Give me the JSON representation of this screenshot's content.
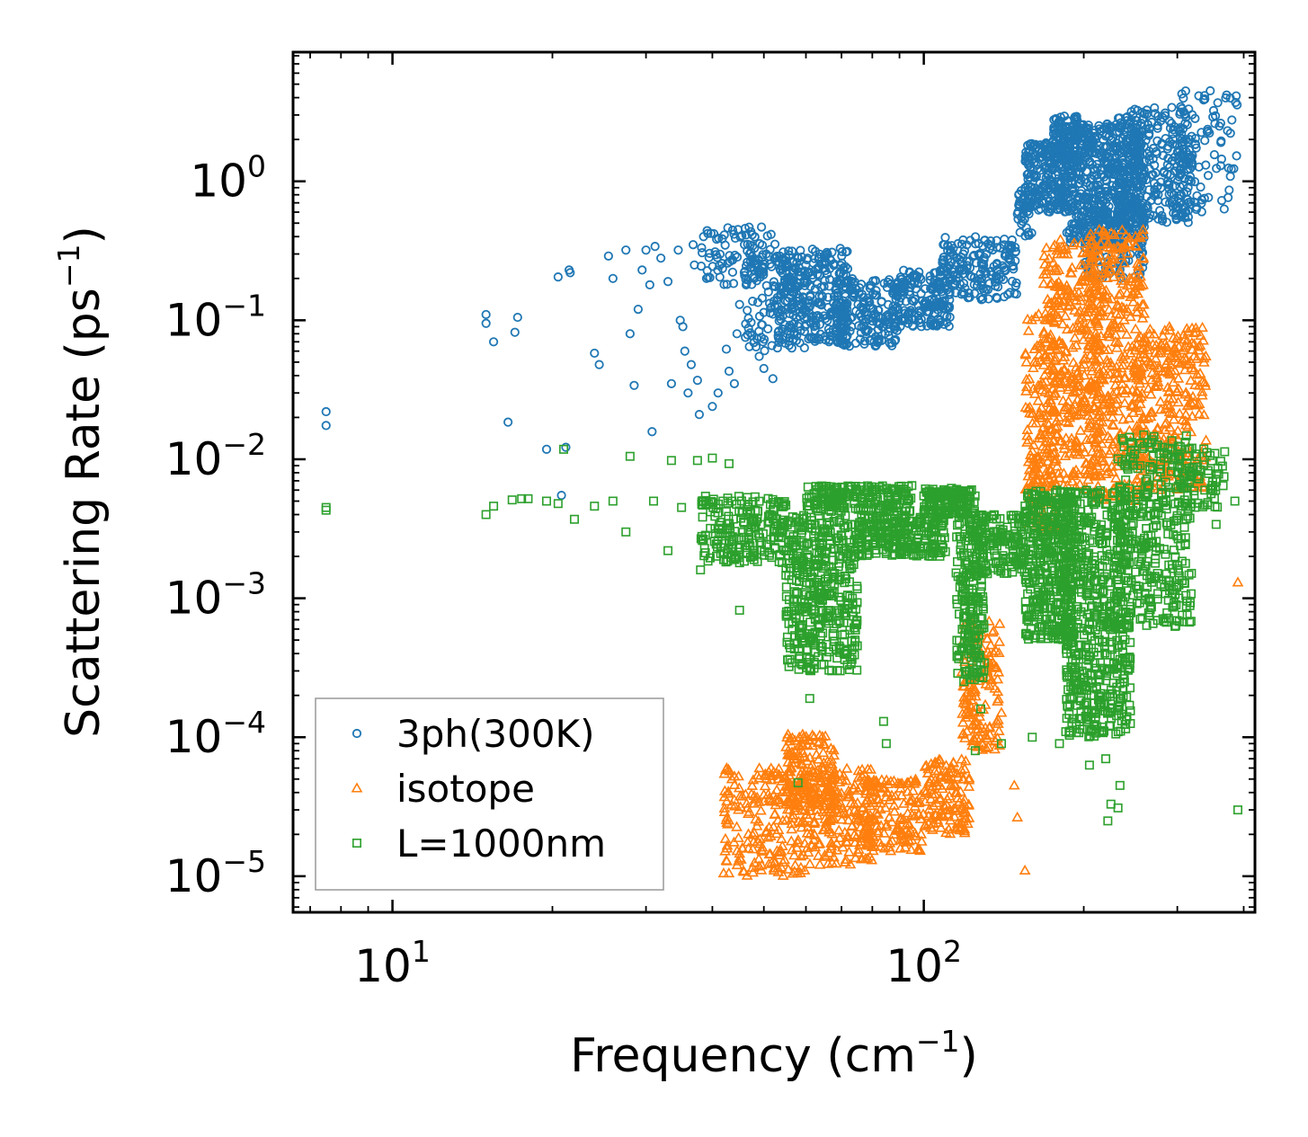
{
  "chart_data": {
    "type": "scatter",
    "xlabel": "Frequency (cm",
    "xlabel_sup": "−1",
    "xlabel_tail": ")",
    "ylabel": "Scattering Rate (ps",
    "ylabel_sup": "−1",
    "ylabel_tail": ")",
    "xscale": "log",
    "yscale": "log",
    "xlim": [
      6.5,
      420
    ],
    "ylim": [
      5.5e-06,
      8.5
    ],
    "legend_position": "lower-left",
    "x_ticks": [
      {
        "value": 10,
        "base": "10",
        "exp": "1"
      },
      {
        "value": 100,
        "base": "10",
        "exp": "2"
      }
    ],
    "y_ticks": [
      {
        "value": 1,
        "base": "10",
        "exp": "0"
      },
      {
        "value": 0.1,
        "base": "10",
        "exp": "−1"
      },
      {
        "value": 0.01,
        "base": "10",
        "exp": "−2"
      },
      {
        "value": 0.001,
        "base": "10",
        "exp": "−3"
      },
      {
        "value": 0.0001,
        "base": "10",
        "exp": "−4"
      },
      {
        "value": 1e-05,
        "base": "10",
        "exp": "−5"
      }
    ],
    "series": [
      {
        "name": "3ph(300K)",
        "marker": "circle",
        "color": "#1f77b4",
        "points": [
          [
            7.5,
            0.022
          ],
          [
            7.5,
            0.0175
          ],
          [
            15,
            0.11
          ],
          [
            15,
            0.095
          ],
          [
            15.5,
            0.07
          ],
          [
            16.5,
            0.0185
          ],
          [
            17.2,
            0.105
          ],
          [
            17,
            0.082
          ],
          [
            19.5,
            0.0118
          ],
          [
            20.5,
            0.205
          ],
          [
            20.8,
            0.0055
          ],
          [
            21.2,
            0.0122
          ],
          [
            21.5,
            0.23
          ],
          [
            21.6,
            0.22
          ],
          [
            24,
            0.058
          ],
          [
            24.5,
            0.048
          ],
          [
            25.5,
            0.29
          ],
          [
            26,
            0.2
          ],
          [
            27.5,
            0.32
          ],
          [
            28,
            0.08
          ],
          [
            28.5,
            0.034
          ],
          [
            29,
            0.12
          ],
          [
            29.5,
            0.23
          ],
          [
            30,
            0.32
          ],
          [
            30.5,
            0.18
          ],
          [
            30.8,
            0.0158
          ],
          [
            31.2,
            0.34
          ],
          [
            32,
            0.28
          ],
          [
            33,
            0.19
          ],
          [
            33.5,
            0.035
          ],
          [
            34.5,
            0.32
          ],
          [
            34.8,
            0.1
          ],
          [
            35.2,
            0.09
          ],
          [
            35.5,
            0.06
          ],
          [
            36,
            0.03
          ],
          [
            36.5,
            0.048
          ],
          [
            36.8,
            0.35
          ],
          [
            37,
            0.25
          ],
          [
            37.5,
            0.037
          ],
          [
            37.8,
            0.021
          ],
          [
            38.5,
            0.4
          ],
          [
            39,
            0.2
          ],
          [
            40,
            0.024
          ],
          [
            41,
            0.03
          ],
          [
            42.5,
            0.062
          ],
          [
            43,
            0.043
          ],
          [
            44,
            0.035
          ],
          [
            44.5,
            0.08
          ],
          [
            45,
            0.13
          ],
          [
            46,
            0.21
          ],
          [
            47,
            0.3
          ],
          [
            48,
            0.33
          ],
          [
            49,
            0.055
          ],
          [
            50,
            0.045
          ],
          [
            51,
            0.16
          ],
          [
            52,
            0.038
          ]
        ],
        "bands": [
          {
            "x_min": 38,
            "x_max": 53,
            "y_min": 0.18,
            "y_max": 0.47,
            "n": 90
          },
          {
            "x_min": 46,
            "x_max": 60,
            "y_min": 0.06,
            "y_max": 0.32,
            "n": 120
          },
          {
            "x_min": 53,
            "x_max": 72,
            "y_min": 0.07,
            "y_max": 0.33,
            "n": 260
          },
          {
            "x_min": 68,
            "x_max": 90,
            "y_min": 0.065,
            "y_max": 0.2,
            "n": 200
          },
          {
            "x_min": 88,
            "x_max": 112,
            "y_min": 0.09,
            "y_max": 0.23,
            "n": 160
          },
          {
            "x_min": 108,
            "x_max": 150,
            "y_min": 0.14,
            "y_max": 0.4,
            "n": 180
          },
          {
            "x_min": 150,
            "x_max": 160,
            "y_min": 0.4,
            "y_max": 0.9,
            "n": 40
          },
          {
            "x_min": 155,
            "x_max": 185,
            "y_min": 0.6,
            "y_max": 1.9,
            "n": 220
          },
          {
            "x_min": 175,
            "x_max": 195,
            "y_min": 1.3,
            "y_max": 3.0,
            "n": 90
          },
          {
            "x_min": 185,
            "x_max": 260,
            "y_min": 0.35,
            "y_max": 2.6,
            "n": 520
          },
          {
            "x_min": 200,
            "x_max": 260,
            "y_min": 0.2,
            "y_max": 0.8,
            "n": 150
          },
          {
            "x_min": 230,
            "x_max": 320,
            "y_min": 0.5,
            "y_max": 3.4,
            "n": 300
          },
          {
            "x_min": 300,
            "x_max": 390,
            "y_min": 0.6,
            "y_max": 4.5,
            "n": 90
          }
        ]
      },
      {
        "name": "isotope",
        "marker": "triangle",
        "color": "#ff7f0e",
        "points": [
          [
            42,
            1.05e-05
          ],
          [
            155,
            1.1e-05
          ],
          [
            150,
            2.65e-05
          ],
          [
            148,
            4.5e-05
          ],
          [
            390,
            0.0013
          ],
          [
            330,
            0.025
          ],
          [
            140,
            0.00015
          ],
          [
            122,
            0.0007
          ]
        ],
        "bands": [
          {
            "x_min": 42,
            "x_max": 62,
            "y_min": 1e-05,
            "y_max": 6e-05,
            "n": 220
          },
          {
            "x_min": 55,
            "x_max": 68,
            "y_min": 3e-05,
            "y_max": 0.000105,
            "n": 160
          },
          {
            "x_min": 62,
            "x_max": 80,
            "y_min": 1.2e-05,
            "y_max": 6e-05,
            "n": 180
          },
          {
            "x_min": 78,
            "x_max": 100,
            "y_min": 1.5e-05,
            "y_max": 5e-05,
            "n": 140
          },
          {
            "x_min": 100,
            "x_max": 122,
            "y_min": 2e-05,
            "y_max": 7e-05,
            "n": 130
          },
          {
            "x_min": 118,
            "x_max": 140,
            "y_min": 8e-05,
            "y_max": 0.0007,
            "n": 140
          },
          {
            "x_min": 155,
            "x_max": 178,
            "y_min": 0.003,
            "y_max": 0.12,
            "n": 180
          },
          {
            "x_min": 168,
            "x_max": 215,
            "y_min": 0.006,
            "y_max": 0.38,
            "n": 360
          },
          {
            "x_min": 205,
            "x_max": 260,
            "y_min": 0.005,
            "y_max": 0.45,
            "n": 380
          },
          {
            "x_min": 250,
            "x_max": 340,
            "y_min": 0.006,
            "y_max": 0.09,
            "n": 300
          }
        ]
      },
      {
        "name": "L=1000nm",
        "marker": "square",
        "color": "#2ca02c",
        "points": [
          [
            7.5,
            0.0045
          ],
          [
            7.5,
            0.0043
          ],
          [
            15,
            0.004
          ],
          [
            15.5,
            0.0046
          ],
          [
            16.8,
            0.0051
          ],
          [
            17.5,
            0.0052
          ],
          [
            18,
            0.0052
          ],
          [
            19.5,
            0.005
          ],
          [
            20.5,
            0.0048
          ],
          [
            21,
            0.0118
          ],
          [
            22,
            0.0037
          ],
          [
            24,
            0.0046
          ],
          [
            26,
            0.005
          ],
          [
            27.5,
            0.003
          ],
          [
            28,
            0.0105
          ],
          [
            31,
            0.005
          ],
          [
            33,
            0.0022
          ],
          [
            33.5,
            0.0098
          ],
          [
            35,
            0.0045
          ],
          [
            37.5,
            0.0098
          ],
          [
            38,
            0.0016
          ],
          [
            39,
            0.0048
          ],
          [
            40,
            0.0102
          ],
          [
            42,
            0.0019
          ],
          [
            43,
            0.0093
          ],
          [
            45,
            0.0018
          ],
          [
            45,
            0.00082
          ],
          [
            61,
            0.00019
          ],
          [
            58,
            4.7e-05
          ],
          [
            84,
            0.00013
          ],
          [
            85,
            9e-05
          ],
          [
            125,
            8e-05
          ],
          [
            128,
            0.00016
          ],
          [
            140,
            9e-05
          ],
          [
            160,
            0.0001
          ],
          [
            180,
            9e-05
          ],
          [
            205,
            6.3e-05
          ],
          [
            220,
            7e-05
          ],
          [
            222,
            2.5e-05
          ],
          [
            225,
            3.3e-05
          ],
          [
            232,
            3.1e-05
          ],
          [
            234,
            4.5e-05
          ],
          [
            390,
            3e-05
          ],
          [
            355,
            0.0034
          ],
          [
            385,
            0.005
          ]
        ],
        "bands": [
          {
            "x_min": 38,
            "x_max": 55,
            "y_min": 0.0018,
            "y_max": 0.0055,
            "n": 200
          },
          {
            "x_min": 55,
            "x_max": 75,
            "y_min": 0.0003,
            "y_max": 0.004,
            "n": 420
          },
          {
            "x_min": 60,
            "x_max": 95,
            "y_min": 0.0042,
            "y_max": 0.0065,
            "n": 200
          },
          {
            "x_min": 75,
            "x_max": 110,
            "y_min": 0.002,
            "y_max": 0.004,
            "n": 250
          },
          {
            "x_min": 100,
            "x_max": 125,
            "y_min": 0.004,
            "y_max": 0.0062,
            "n": 140
          },
          {
            "x_min": 115,
            "x_max": 130,
            "y_min": 0.00025,
            "y_max": 0.004,
            "n": 200
          },
          {
            "x_min": 125,
            "x_max": 155,
            "y_min": 0.0015,
            "y_max": 0.004,
            "n": 150
          },
          {
            "x_min": 155,
            "x_max": 190,
            "y_min": 0.0005,
            "y_max": 0.006,
            "n": 400
          },
          {
            "x_min": 185,
            "x_max": 245,
            "y_min": 0.0001,
            "y_max": 0.006,
            "n": 600
          },
          {
            "x_min": 230,
            "x_max": 320,
            "y_min": 0.0006,
            "y_max": 0.015,
            "n": 340
          },
          {
            "x_min": 300,
            "x_max": 370,
            "y_min": 0.0045,
            "y_max": 0.012,
            "n": 70
          }
        ]
      }
    ]
  }
}
